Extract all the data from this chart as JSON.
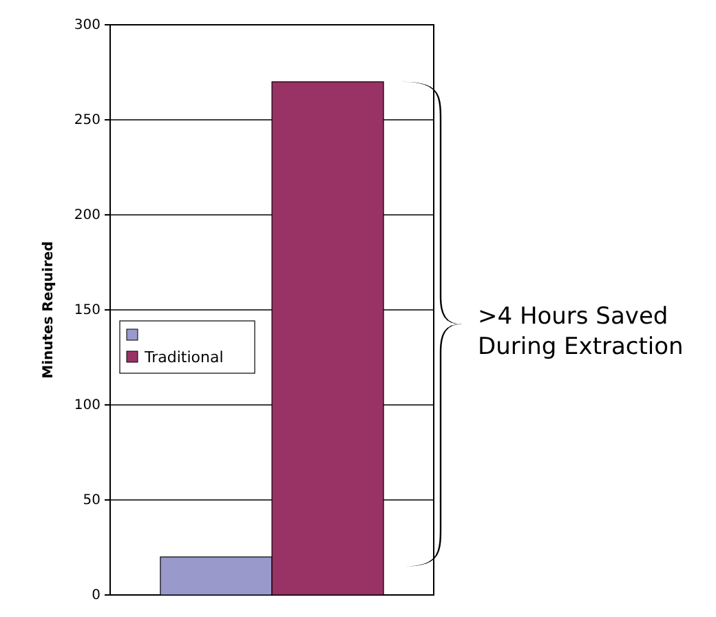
{
  "chart_data": {
    "type": "bar",
    "ylabel": "Minutes Required",
    "categories": [
      null
    ],
    "series": [
      {
        "color": "#9999cc",
        "values": [
          20
        ]
      },
      {
        "name": "Traditional",
        "color": "#993366",
        "values": [
          270
        ]
      }
    ],
    "ylim": [
      0,
      300
    ],
    "yticks": [
      0,
      50,
      100,
      150,
      200,
      250,
      300
    ],
    "grid": "y",
    "legend": "left",
    "annotations": [
      ">4 Hours Saved During Extraction"
    ]
  }
}
